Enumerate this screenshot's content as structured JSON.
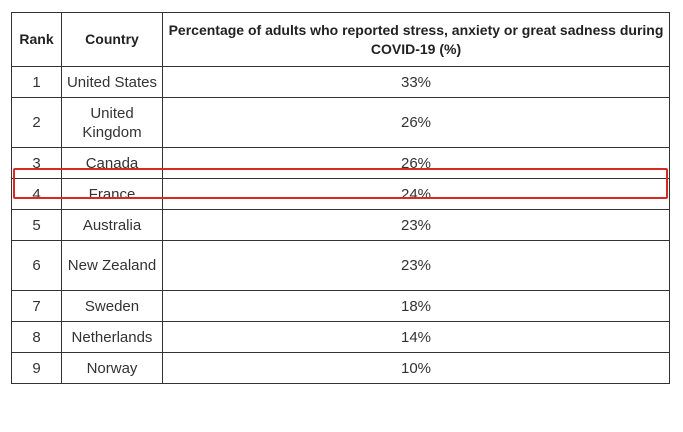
{
  "table": {
    "headers": {
      "rank": "Rank",
      "country": "Country",
      "percentage": "Percentage of adults who reported stress, anxiety or great sadness during COVID-19 (%)"
    },
    "rows": [
      {
        "rank": "1",
        "country": "United States",
        "percentage": "33%"
      },
      {
        "rank": "2",
        "country": "United Kingdom",
        "percentage": "26%"
      },
      {
        "rank": "3",
        "country": "Canada",
        "percentage": "26%"
      },
      {
        "rank": "4",
        "country": "France",
        "percentage": "24%"
      },
      {
        "rank": "5",
        "country": "Australia",
        "percentage": "23%"
      },
      {
        "rank": "6",
        "country": "New Zealand",
        "percentage": "23%"
      },
      {
        "rank": "7",
        "country": "Sweden",
        "percentage": "18%"
      },
      {
        "rank": "8",
        "country": "Netherlands",
        "percentage": "14%"
      },
      {
        "rank": "9",
        "country": "Norway",
        "percentage": "10%"
      }
    ],
    "highlighted_row_rank": "3",
    "highlight_color": "#d62b24",
    "border_color": "#333333"
  }
}
